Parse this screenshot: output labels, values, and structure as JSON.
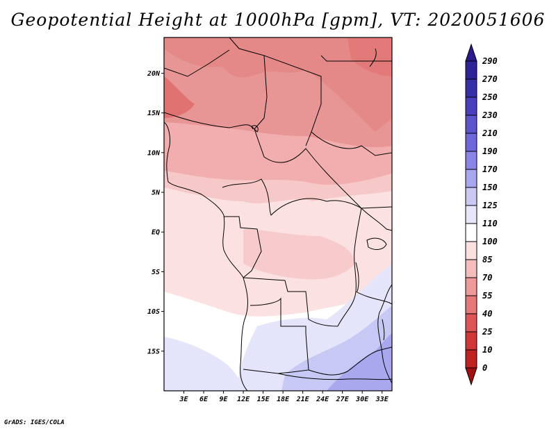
{
  "title": "Geopotential Height at 1000hPa [gpm], VT: 2020051606",
  "credit": "GrADS: IGES/COLA",
  "map": {
    "variable": "Geopotential Height",
    "level": "1000hPa",
    "units": "gpm",
    "valid_time": "2020051606",
    "lon_range": [
      0,
      34.5
    ],
    "lat_range": [
      -20,
      24.5
    ],
    "lat_ticks": [
      {
        "v": 20,
        "label": "20N"
      },
      {
        "v": 15,
        "label": "15N"
      },
      {
        "v": 10,
        "label": "10N"
      },
      {
        "v": 5,
        "label": "5N"
      },
      {
        "v": 0,
        "label": "EQ"
      },
      {
        "v": -5,
        "label": "5S"
      },
      {
        "v": -10,
        "label": "10S"
      },
      {
        "v": -15,
        "label": "15S"
      }
    ],
    "lon_ticks": [
      {
        "v": 3,
        "label": "3E"
      },
      {
        "v": 6,
        "label": "6E"
      },
      {
        "v": 9,
        "label": "9E"
      },
      {
        "v": 12,
        "label": "12E"
      },
      {
        "v": 15,
        "label": "15E"
      },
      {
        "v": 18,
        "label": "18E"
      },
      {
        "v": 21,
        "label": "21E"
      },
      {
        "v": 24,
        "label": "24E"
      },
      {
        "v": 27,
        "label": "27E"
      },
      {
        "v": 30,
        "label": "30E"
      },
      {
        "v": 33,
        "label": "33E"
      }
    ]
  },
  "colorbar": {
    "levels": [
      "290",
      "270",
      "250",
      "230",
      "210",
      "190",
      "170",
      "150",
      "125",
      "110",
      "100",
      "85",
      "70",
      "55",
      "40",
      "25",
      "10",
      "0"
    ],
    "colors": [
      "#2a1a8c",
      "#2e2399",
      "#3630a8",
      "#4a40bf",
      "#5b54cc",
      "#6f68dc",
      "#8a84e6",
      "#a8a6ee",
      "#c9c9f4",
      "#e6e6fa",
      "#ffffff",
      "#fbe0e0",
      "#f5bcbc",
      "#ee9a9a",
      "#e67878",
      "#dd5555",
      "#d03636",
      "#bf2121",
      "#a01010"
    ]
  }
}
